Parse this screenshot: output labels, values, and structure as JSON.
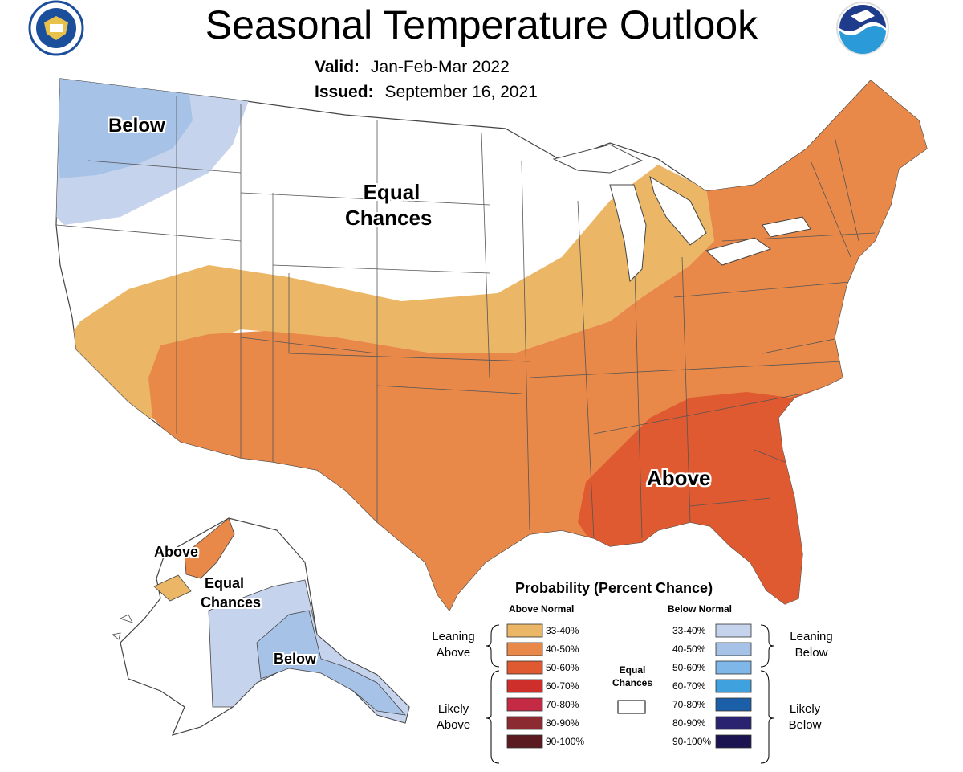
{
  "header": {
    "title": "Seasonal Temperature Outlook",
    "valid_label": "Valid:",
    "valid_value": "Jan-Feb-Mar 2022",
    "issued_label": "Issued:",
    "issued_value": "September 16, 2021"
  },
  "logos": {
    "commerce_seal_text": "DEPARTMENT OF COMMERCE · UNITED STATES OF AMERICA",
    "noaa_text": "NOAA"
  },
  "map_labels": {
    "below_northwest": "Below",
    "equal_chances_line1": "Equal",
    "equal_chances_line2": "Chances",
    "above_southeast": "Above",
    "alaska_above": "Above",
    "alaska_equal_line1": "Equal",
    "alaska_equal_line2": "Chances",
    "alaska_below": "Below"
  },
  "legend": {
    "title": "Probability (Percent Chance)",
    "above_header": "Above Normal",
    "below_header": "Below Normal",
    "above": [
      {
        "range": "33-40%",
        "color": "#ebb766"
      },
      {
        "range": "40-50%",
        "color": "#e8894a"
      },
      {
        "range": "50-60%",
        "color": "#df5a30"
      },
      {
        "range": "60-70%",
        "color": "#cf2f2a"
      },
      {
        "range": "70-80%",
        "color": "#c52a45"
      },
      {
        "range": "80-90%",
        "color": "#8b2a30"
      },
      {
        "range": "90-100%",
        "color": "#5a1a20"
      }
    ],
    "below": [
      {
        "range": "33-40%",
        "color": "#c6d3ec"
      },
      {
        "range": "40-50%",
        "color": "#a6c2e6"
      },
      {
        "range": "50-60%",
        "color": "#7fb8e8"
      },
      {
        "range": "60-70%",
        "color": "#3fa1dd"
      },
      {
        "range": "70-80%",
        "color": "#1b5fa8"
      },
      {
        "range": "80-90%",
        "color": "#2a2470"
      },
      {
        "range": "90-100%",
        "color": "#1c1450"
      }
    ],
    "leaning_above_line1": "Leaning",
    "leaning_above_line2": "Above",
    "likely_above_line1": "Likely",
    "likely_above_line2": "Above",
    "leaning_below_line1": "Leaning",
    "leaning_below_line2": "Below",
    "likely_below_line1": "Likely",
    "likely_below_line2": "Below",
    "equal_line1": "Equal",
    "equal_line2": "Chances"
  },
  "colors": {
    "above_33_40": "#ebb766",
    "above_40_50": "#e8894a",
    "above_50_60": "#df5a30",
    "below_33_40": "#c6d3ec",
    "below_40_50": "#a6c2e6",
    "equal": "#ffffff",
    "border": "#555555"
  }
}
